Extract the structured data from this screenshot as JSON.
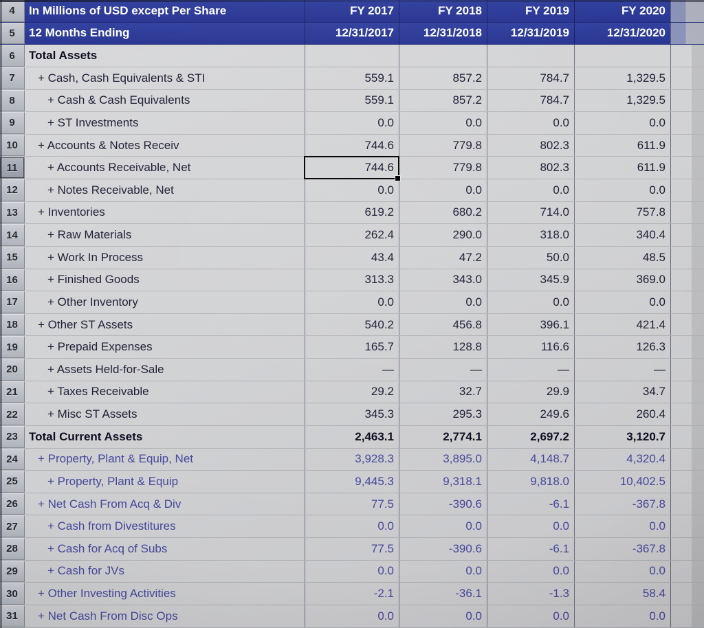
{
  "sheet": {
    "title_line1": "In Millions of USD except Per Share",
    "title_line2": "12 Months Ending",
    "header_row_numbers": [
      "4",
      "5"
    ],
    "columns": [
      {
        "fy": "FY 2017",
        "date": "12/31/2017"
      },
      {
        "fy": "FY 2018",
        "date": "12/31/2018"
      },
      {
        "fy": "FY 2019",
        "date": "12/31/2019"
      },
      {
        "fy": "FY 2020",
        "date": "12/31/2020"
      }
    ],
    "selection": {
      "row": "11",
      "column_index": 0,
      "value": "744.6"
    },
    "colors": {
      "header_bg": "#2e3b9b",
      "header_text": "#ffffff",
      "grid_line": "#1e2042",
      "selection_border": "#000000",
      "muted_blue_text": "#44479a"
    },
    "rows": [
      {
        "num": "6",
        "label": "Total Assets",
        "indent": 0,
        "style": "bold",
        "values": [
          "",
          "",
          "",
          ""
        ]
      },
      {
        "num": "7",
        "label": "+ Cash, Cash Equivalents & STI",
        "indent": 1,
        "style": "normal",
        "values": [
          "559.1",
          "857.2",
          "784.7",
          "1,329.5"
        ]
      },
      {
        "num": "8",
        "label": "+ Cash & Cash Equivalents",
        "indent": 2,
        "style": "normal",
        "values": [
          "559.1",
          "857.2",
          "784.7",
          "1,329.5"
        ]
      },
      {
        "num": "9",
        "label": "+ ST Investments",
        "indent": 2,
        "style": "normal",
        "values": [
          "0.0",
          "0.0",
          "0.0",
          "0.0"
        ]
      },
      {
        "num": "10",
        "label": "+ Accounts & Notes Receiv",
        "indent": 1,
        "style": "normal",
        "values": [
          "744.6",
          "779.8",
          "802.3",
          "611.9"
        ]
      },
      {
        "num": "11",
        "label": "+ Accounts Receivable, Net",
        "indent": 2,
        "style": "normal",
        "values": [
          "744.6",
          "779.8",
          "802.3",
          "611.9"
        ],
        "selected_col": 0
      },
      {
        "num": "12",
        "label": "+ Notes Receivable, Net",
        "indent": 2,
        "style": "normal",
        "values": [
          "0.0",
          "0.0",
          "0.0",
          "0.0"
        ]
      },
      {
        "num": "13",
        "label": "+ Inventories",
        "indent": 1,
        "style": "normal",
        "values": [
          "619.2",
          "680.2",
          "714.0",
          "757.8"
        ]
      },
      {
        "num": "14",
        "label": "+ Raw Materials",
        "indent": 2,
        "style": "normal",
        "values": [
          "262.4",
          "290.0",
          "318.0",
          "340.4"
        ]
      },
      {
        "num": "15",
        "label": "+ Work In Process",
        "indent": 2,
        "style": "normal",
        "values": [
          "43.4",
          "47.2",
          "50.0",
          "48.5"
        ]
      },
      {
        "num": "16",
        "label": "+ Finished Goods",
        "indent": 2,
        "style": "normal",
        "values": [
          "313.3",
          "343.0",
          "345.9",
          "369.0"
        ]
      },
      {
        "num": "17",
        "label": "+ Other Inventory",
        "indent": 2,
        "style": "normal",
        "values": [
          "0.0",
          "0.0",
          "0.0",
          "0.0"
        ]
      },
      {
        "num": "18",
        "label": "+ Other ST Assets",
        "indent": 1,
        "style": "normal",
        "values": [
          "540.2",
          "456.8",
          "396.1",
          "421.4"
        ]
      },
      {
        "num": "19",
        "label": "+ Prepaid Expenses",
        "indent": 2,
        "style": "normal",
        "values": [
          "165.7",
          "128.8",
          "116.6",
          "126.3"
        ]
      },
      {
        "num": "20",
        "label": "+ Assets Held-for-Sale",
        "indent": 2,
        "style": "normal",
        "values": [
          "—",
          "—",
          "—",
          "—"
        ]
      },
      {
        "num": "21",
        "label": "+ Taxes Receivable",
        "indent": 2,
        "style": "normal",
        "values": [
          "29.2",
          "32.7",
          "29.9",
          "34.7"
        ]
      },
      {
        "num": "22",
        "label": "+ Misc ST Assets",
        "indent": 2,
        "style": "normal",
        "values": [
          "345.3",
          "295.3",
          "249.6",
          "260.4"
        ]
      },
      {
        "num": "23",
        "label": "Total Current Assets",
        "indent": 0,
        "style": "bold",
        "values": [
          "2,463.1",
          "2,774.1",
          "2,697.2",
          "3,120.7"
        ]
      },
      {
        "num": "24",
        "label": "+ Property, Plant & Equip, Net",
        "indent": 1,
        "style": "blue",
        "values": [
          "3,928.3",
          "3,895.0",
          "4,148.7",
          "4,320.4"
        ]
      },
      {
        "num": "25",
        "label": "+ Property, Plant & Equip",
        "indent": 2,
        "style": "blue",
        "values": [
          "9,445.3",
          "9,318.1",
          "9,818.0",
          "10,402.5"
        ]
      },
      {
        "num": "26",
        "label": "+ Net Cash From Acq & Div",
        "indent": 1,
        "style": "blue",
        "values": [
          "77.5",
          "-390.6",
          "-6.1",
          "-367.8"
        ]
      },
      {
        "num": "27",
        "label": "+ Cash from Divestitures",
        "indent": 2,
        "style": "blue",
        "values": [
          "0.0",
          "0.0",
          "0.0",
          "0.0"
        ]
      },
      {
        "num": "28",
        "label": "+ Cash for Acq of Subs",
        "indent": 2,
        "style": "blue",
        "values": [
          "77.5",
          "-390.6",
          "-6.1",
          "-367.8"
        ]
      },
      {
        "num": "29",
        "label": "+ Cash for JVs",
        "indent": 2,
        "style": "blue",
        "values": [
          "0.0",
          "0.0",
          "0.0",
          "0.0"
        ]
      },
      {
        "num": "30",
        "label": "+ Other Investing Activities",
        "indent": 1,
        "style": "blue",
        "values": [
          "-2.1",
          "-36.1",
          "-1.3",
          "58.4"
        ]
      },
      {
        "num": "31",
        "label": "+ Net Cash From Disc Ops",
        "indent": 1,
        "style": "blue",
        "values": [
          "0.0",
          "0.0",
          "0.0",
          "0.0"
        ]
      }
    ]
  }
}
